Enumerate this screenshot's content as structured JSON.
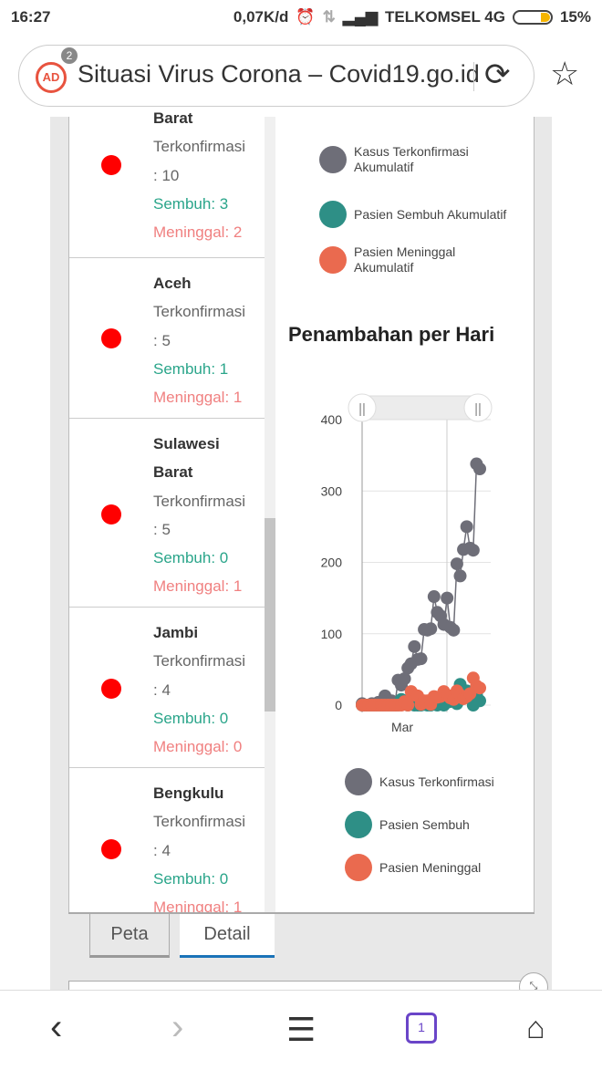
{
  "status": {
    "time": "16:27",
    "speed": "0,07K/d",
    "carrier": "TELKOMSEL 4G",
    "battery": "15%",
    "battery_level": 0.15
  },
  "browser": {
    "title": "Situasi Virus Corona – Covid19.go.id",
    "ad_badge": "2",
    "ad_label": "AD",
    "tab_count": "1"
  },
  "list": [
    {
      "name": "Barat",
      "confirmed": "Terkonfirmasi",
      "confirmed_val": ": 10",
      "recovered": "Sembuh: 3",
      "died": "Meninggal: 2"
    },
    {
      "name": "Aceh",
      "confirmed": "Terkonfirmasi",
      "confirmed_val": ": 5",
      "recovered": "Sembuh: 1",
      "died": "Meninggal: 1"
    },
    {
      "name": "Sulawesi",
      "name2": "Barat",
      "confirmed": "Terkonfirmasi",
      "confirmed_val": ": 5",
      "recovered": "Sembuh: 0",
      "died": "Meninggal: 1"
    },
    {
      "name": "Jambi",
      "confirmed": "Terkonfirmasi",
      "confirmed_val": ": 4",
      "recovered": "Sembuh: 0",
      "died": "Meninggal: 0"
    },
    {
      "name": "Bengkulu",
      "confirmed": "Terkonfirmasi",
      "confirmed_val": ": 4",
      "recovered": "Sembuh: 0",
      "died": "Meninggal: 1"
    }
  ],
  "legend_top": [
    "Kasus Terkonfirmasi Akumulatif",
    "Pasien Sembuh Akumulatif",
    "Pasien Meninggal Akumulatif"
  ],
  "chart_title": "Penambahan per Hari",
  "colors": {
    "confirmed": "#6e6e78",
    "recovered": "#2e8f86",
    "died": "#ea6a4f"
  },
  "chart_data": {
    "type": "line",
    "title": "Penambahan per Hari",
    "xlabel": "",
    "ylabel": "",
    "x_tick_labels": [
      "Mar"
    ],
    "y_ticks": [
      0,
      100,
      200,
      300,
      400
    ],
    "ylim": [
      0,
      400
    ],
    "legend_position": "bottom",
    "series": [
      {
        "name": "Kasus Terkonfirmasi",
        "values": [
          2,
          0,
          0,
          2,
          0,
          4,
          0,
          13,
          6,
          6,
          0,
          35,
          28,
          37,
          52,
          58,
          82,
          64,
          65,
          106,
          105,
          107,
          152,
          130,
          125,
          113,
          150,
          109,
          105,
          198,
          181,
          218,
          250,
          220,
          217,
          338,
          331
        ]
      },
      {
        "name": "Pasien Sembuh",
        "values": [
          0,
          0,
          0,
          0,
          0,
          0,
          0,
          0,
          0,
          0,
          0,
          0,
          8,
          2,
          0,
          2,
          0,
          0,
          0,
          1,
          0,
          0,
          5,
          0,
          4,
          0,
          4,
          5,
          10,
          2,
          29,
          17,
          20,
          12,
          0,
          15,
          6
        ]
      },
      {
        "name": "Pasien Meninggal",
        "values": [
          0,
          0,
          0,
          0,
          0,
          0,
          0,
          0,
          0,
          0,
          0,
          0,
          0,
          5,
          0,
          19,
          14,
          13,
          1,
          6,
          6,
          1,
          12,
          11,
          12,
          19,
          14,
          10,
          8,
          20,
          14,
          9,
          12,
          16,
          38,
          27,
          24
        ]
      }
    ]
  },
  "tabs": {
    "peta": "Peta",
    "detail": "Detail"
  }
}
